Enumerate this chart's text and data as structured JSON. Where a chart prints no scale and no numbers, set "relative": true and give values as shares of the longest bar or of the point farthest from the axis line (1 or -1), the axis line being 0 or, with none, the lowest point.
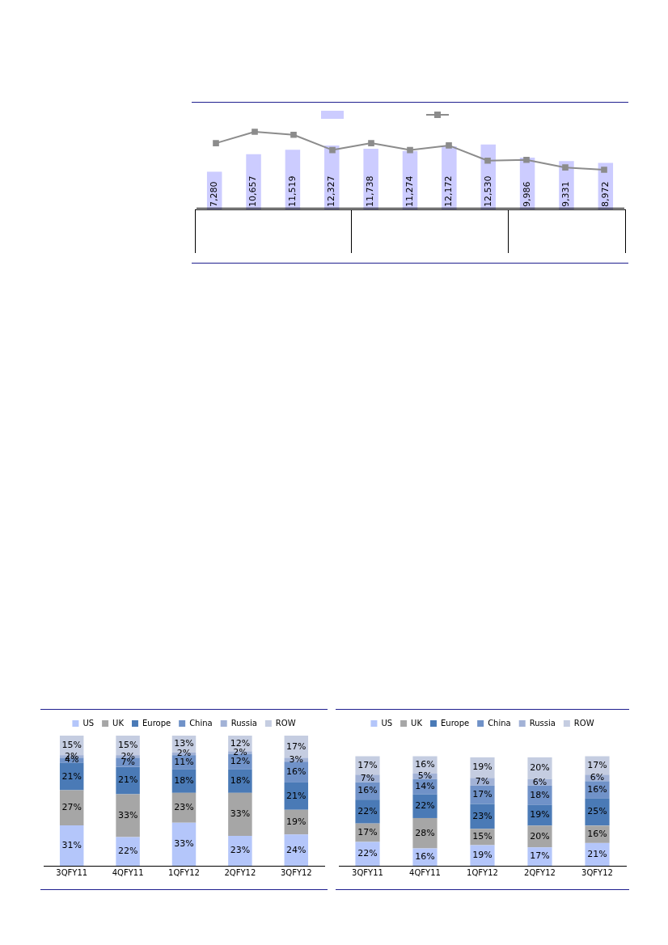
{
  "chart_data": [
    {
      "type": "bar",
      "categories": [
        null,
        null,
        null,
        null,
        null,
        null,
        null,
        null,
        null,
        null,
        null
      ],
      "grid": false,
      "tick_labels": false,
      "color": "#ccccff",
      "values": [
        7280,
        10657,
        11519,
        12327,
        11738,
        11274,
        12172,
        12530,
        9986,
        9331,
        8972
      ],
      "value_labels": [
        "7,280",
        "10,657",
        "11,519",
        "12,327",
        "11,738",
        "11,274",
        "12,172",
        "12,530",
        "9,986",
        "9,331",
        "8,972"
      ]
    },
    {
      "type": "line",
      "relative": true,
      "categories": [
        null,
        null,
        null,
        null,
        null,
        null,
        null,
        null,
        null,
        null,
        null
      ],
      "grid": false,
      "tick_labels": false,
      "color": "#8c8c8c",
      "marker": "square",
      "line_style": "solid",
      "values": [
        0.85,
        1,
        0.96,
        0.76,
        0.85,
        0.76,
        0.82,
        0.62,
        0.63,
        0.53,
        0.5
      ]
    },
    {
      "type": "bar",
      "stacked": true,
      "categories": [
        "3QFY11",
        "4QFY11",
        "1QFY12",
        "2QFY12",
        "3QFY12"
      ],
      "legend": "top",
      "grid": false,
      "tick_labels": "x",
      "series": [
        {
          "name": "US",
          "color": "#b4c6fa",
          "values": [
            31,
            22,
            33,
            23,
            24
          ],
          "value_labels": [
            "31%",
            "22%",
            "33%",
            "23%",
            "24%"
          ]
        },
        {
          "name": "UK",
          "color": "#a6a6a6",
          "values": [
            27,
            33,
            23,
            33,
            19
          ],
          "value_labels": [
            "27%",
            "33%",
            "23%",
            "33%",
            "19%"
          ]
        },
        {
          "name": "Europe",
          "color": "#4a7ab6",
          "values": [
            21,
            21,
            18,
            18,
            21
          ],
          "value_labels": [
            "21%",
            "21%",
            "18%",
            "18%",
            "21%"
          ]
        },
        {
          "name": "China",
          "color": "#7092c8",
          "values": [
            4,
            7,
            11,
            12,
            16
          ],
          "value_labels": [
            "4%",
            "7%",
            "11%",
            "12%",
            "16%"
          ]
        },
        {
          "name": "Russia",
          "color": "#a2b2d6",
          "values": [
            2,
            2,
            2,
            2,
            3
          ],
          "value_labels": [
            "2%",
            "2%",
            "2%",
            "2%",
            "3%"
          ]
        },
        {
          "name": "ROW",
          "color": "#c5cde1",
          "values": [
            15,
            15,
            13,
            12,
            17
          ],
          "value_labels": [
            "15%",
            "15%",
            "13%",
            "12%",
            "17%"
          ]
        }
      ]
    },
    {
      "type": "bar",
      "stacked": true,
      "categories": [
        "3QFY11",
        "4QFY11",
        "1QFY12",
        "2QFY12",
        "3QFY12"
      ],
      "legend": "top",
      "grid": false,
      "tick_labels": "x",
      "series": [
        {
          "name": "US",
          "color": "#b4c6fa",
          "values": [
            22,
            16,
            19,
            17,
            21
          ],
          "value_labels": [
            "22%",
            "16%",
            "19%",
            "17%",
            "21%"
          ]
        },
        {
          "name": "UK",
          "color": "#a6a6a6",
          "values": [
            17,
            28,
            15,
            20,
            16
          ],
          "value_labels": [
            "17%",
            "28%",
            "15%",
            "20%",
            "16%"
          ]
        },
        {
          "name": "Europe",
          "color": "#4a7ab6",
          "values": [
            22,
            22,
            23,
            19,
            25
          ],
          "value_labels": [
            "22%",
            "22%",
            "23%",
            "19%",
            "25%"
          ]
        },
        {
          "name": "China",
          "color": "#7092c8",
          "values": [
            16,
            14,
            17,
            18,
            16
          ],
          "value_labels": [
            "16%",
            "14%",
            "17%",
            "18%",
            "16%"
          ]
        },
        {
          "name": "Russia",
          "color": "#a2b2d6",
          "values": [
            7,
            5,
            7,
            6,
            6
          ],
          "value_labels": [
            "7%",
            "5%",
            "7%",
            "6%",
            "6%"
          ]
        },
        {
          "name": "ROW",
          "color": "#c5cde1",
          "values": [
            17,
            16,
            19,
            20,
            17
          ],
          "value_labels": [
            "17%",
            "16%",
            "19%",
            "20%",
            "17%"
          ]
        }
      ]
    }
  ]
}
